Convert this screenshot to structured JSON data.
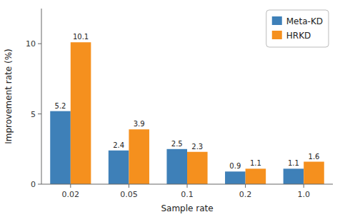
{
  "chart_data": {
    "type": "bar",
    "categories": [
      "0.02",
      "0.05",
      "0.1",
      "0.2",
      "1.0"
    ],
    "series": [
      {
        "name": "Meta-KD",
        "color": "#3e80b8",
        "values": [
          5.2,
          2.4,
          2.5,
          0.9,
          1.1
        ]
      },
      {
        "name": "HRKD",
        "color": "#f5901e",
        "values": [
          10.1,
          3.9,
          2.3,
          1.1,
          1.6
        ]
      }
    ],
    "xlabel": "Sample rate",
    "ylabel": "Improvement rate (%)",
    "ylim": [
      0,
      12.5
    ],
    "yticks": [
      0,
      5,
      10
    ],
    "grid": false,
    "legend": "upper right",
    "data_labels": true
  }
}
